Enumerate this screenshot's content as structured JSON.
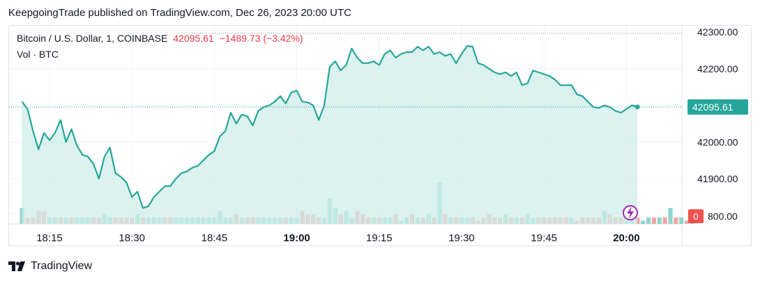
{
  "publisher": "KeepgoingTrade published on TradingView.com, Dec 26, 2023 20:00 UTC",
  "legend": {
    "symbol": "Bitcoin / U.S. Dollar, 1, COINBASE",
    "last": "42095.61",
    "change": "−1489.73 (−3.42%)",
    "volume_label": "Vol · BTC"
  },
  "footer": {
    "brand": "TradingView"
  },
  "colors": {
    "line": "#26a69a",
    "fill": "#cfeee9",
    "vol_up": "#8ed6cd",
    "vol_down": "#f2a5a5",
    "price_tag": "#26a69a",
    "vol_tag": "#ef5350",
    "bolt": "#9c27b0"
  },
  "chart_data": {
    "type": "line",
    "title": "Bitcoin / U.S. Dollar, 1, COINBASE",
    "y_axis": {
      "range": [
        41800,
        42300
      ],
      "ticks": [
        "42300.00",
        "42200.00",
        "42100.00",
        "42000.00",
        "41900.00"
      ],
      "tick_values": [
        42300,
        42200,
        42100,
        42000,
        41900
      ]
    },
    "x_axis": {
      "tick_labels": [
        "18:15",
        "18:30",
        "18:45",
        "19:00",
        "19:15",
        "19:30",
        "19:45",
        "20:00"
      ],
      "tick_minutes": [
        15,
        30,
        45,
        60,
        75,
        90,
        105,
        120
      ],
      "bold_ticks": [
        "19:00",
        "20:00"
      ],
      "start_minute": 10,
      "end_minute": 131
    },
    "last_price_tag": "42095.61",
    "last_price": 42095.61,
    "volume_tag_value": "0",
    "volume_axis_label": "800.00",
    "grid": true,
    "series": [
      {
        "x": [
          10,
          11,
          12,
          13,
          14,
          15,
          16,
          17,
          18,
          19,
          20,
          21,
          22,
          23,
          24,
          25,
          26,
          27,
          28,
          29,
          30,
          31,
          32,
          33,
          34,
          35,
          36,
          37,
          38,
          39,
          40,
          41,
          42,
          43,
          44,
          45,
          46,
          47,
          48,
          49,
          50,
          51,
          52,
          53,
          54,
          55,
          56,
          57,
          58,
          59,
          60,
          61,
          62,
          63,
          64,
          65,
          66,
          67,
          68,
          69,
          70,
          71,
          72,
          73,
          74,
          75,
          76,
          77,
          78,
          79,
          80,
          81,
          82,
          83,
          84,
          85,
          86,
          87,
          88,
          89,
          90,
          91,
          92,
          93,
          94,
          95,
          96,
          97,
          98,
          99,
          100,
          101,
          102,
          103,
          104,
          105,
          106,
          107,
          108,
          109,
          110,
          111,
          112,
          113,
          114,
          115,
          116,
          117,
          118,
          119,
          120,
          121,
          122
        ],
        "values": [
          42110,
          42090,
          42030,
          41980,
          42025,
          42005,
          42025,
          42060,
          42000,
          42035,
          41990,
          41965,
          41960,
          41940,
          41900,
          41960,
          41985,
          41915,
          41905,
          41890,
          41850,
          41865,
          41820,
          41825,
          41850,
          41865,
          41880,
          41880,
          41900,
          41915,
          41920,
          41930,
          41935,
          41950,
          41965,
          41975,
          42015,
          42030,
          42080,
          42050,
          42075,
          42070,
          42045,
          42085,
          42095,
          42100,
          42110,
          42125,
          42105,
          42135,
          42140,
          42110,
          42108,
          42100,
          42060,
          42100,
          42205,
          42220,
          42195,
          42210,
          42255,
          42230,
          42215,
          42215,
          42220,
          42210,
          42240,
          42250,
          42230,
          42240,
          42245,
          42245,
          42260,
          42250,
          42260,
          42240,
          42245,
          42235,
          42240,
          42215,
          42240,
          42262,
          42260,
          42215,
          42210,
          42200,
          42190,
          42185,
          42190,
          42180,
          42190,
          42155,
          42160,
          42195,
          42190,
          42185,
          42180,
          42170,
          42155,
          42155,
          42155,
          42130,
          42125,
          42110,
          42095,
          42093,
          42100,
          42095,
          42085,
          42080,
          42090,
          42100,
          42096
        ]
      }
    ],
    "volume": {
      "values": [
        5,
        2,
        2,
        4,
        4,
        2,
        2,
        2,
        2,
        2,
        2,
        2,
        2,
        2,
        2,
        3,
        2,
        2,
        2,
        2,
        2,
        3,
        2,
        2,
        2,
        2,
        2,
        2,
        2,
        2,
        2,
        2,
        2,
        2,
        2,
        2,
        4,
        2,
        2,
        3,
        2,
        2,
        2,
        2,
        2,
        2,
        2,
        2,
        2,
        2,
        2,
        4,
        3,
        3,
        2,
        2,
        8,
        5,
        3,
        4,
        2,
        4,
        3,
        2,
        2,
        2,
        2,
        2,
        3,
        1,
        2,
        3,
        2,
        2,
        3,
        2,
        13,
        3,
        2,
        2,
        2,
        2,
        2,
        1,
        2,
        3,
        2,
        2,
        3,
        2,
        2,
        2,
        3,
        2,
        2,
        2,
        2,
        2,
        2,
        2,
        2,
        1,
        2,
        2,
        2,
        2,
        4,
        3,
        2,
        2,
        2,
        3,
        2,
        1,
        2,
        2,
        2,
        2,
        5,
        2,
        2,
        1,
        2
      ],
      "up": [
        1,
        0,
        0,
        0,
        0,
        1,
        1,
        0,
        1,
        0,
        1,
        1,
        1,
        0,
        0,
        1,
        1,
        0,
        0,
        0,
        0,
        1,
        0,
        1,
        1,
        1,
        0,
        0,
        1,
        1,
        1,
        1,
        1,
        1,
        1,
        1,
        1,
        1,
        1,
        0,
        1,
        0,
        0,
        1,
        1,
        1,
        1,
        1,
        0,
        1,
        1,
        0,
        0,
        0,
        0,
        1,
        1,
        1,
        0,
        1,
        1,
        0,
        0,
        0,
        1,
        0,
        1,
        1,
        0,
        1,
        1,
        0,
        1,
        0,
        1,
        0,
        1,
        0,
        1,
        0,
        1,
        1,
        0,
        0,
        0,
        0,
        0,
        0,
        1,
        0,
        1,
        0,
        1,
        1,
        0,
        0,
        0,
        0,
        0,
        0,
        1,
        0,
        0,
        0,
        0,
        0,
        1,
        0,
        0,
        0,
        1,
        1,
        0,
        1,
        1,
        0,
        1,
        0,
        1,
        0,
        1,
        0,
        1
      ]
    }
  }
}
